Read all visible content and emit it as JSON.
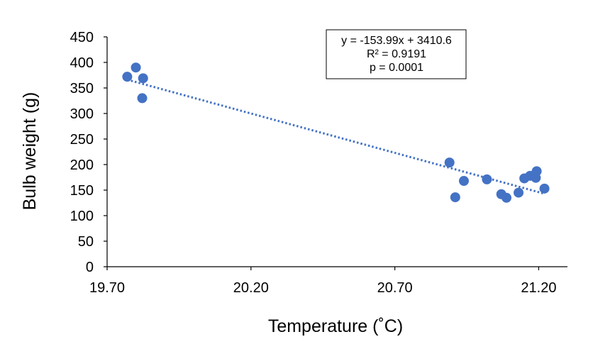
{
  "chart_data": {
    "type": "scatter",
    "title": "",
    "xlabel": "Temperature (˚C)",
    "ylabel": "Bulb weight (g)",
    "xlim": [
      19.7,
      21.3
    ],
    "ylim": [
      0,
      450
    ],
    "x_ticks": [
      "19.70",
      "20.20",
      "20.70",
      "21.20"
    ],
    "x_tick_values": [
      19.7,
      20.2,
      20.7,
      21.2
    ],
    "y_ticks": [
      "0",
      "50",
      "100",
      "150",
      "200",
      "250",
      "300",
      "350",
      "400",
      "450"
    ],
    "y_tick_values": [
      0,
      50,
      100,
      150,
      200,
      250,
      300,
      350,
      400,
      450
    ],
    "grid": false,
    "series": [
      {
        "name": "Bulb weight",
        "color": "#4472C4",
        "points": [
          {
            "x": 19.77,
            "y": 372
          },
          {
            "x": 19.8,
            "y": 390
          },
          {
            "x": 19.825,
            "y": 369
          },
          {
            "x": 19.822,
            "y": 330
          },
          {
            "x": 20.89,
            "y": 204
          },
          {
            "x": 20.91,
            "y": 136
          },
          {
            "x": 20.94,
            "y": 168
          },
          {
            "x": 21.02,
            "y": 171
          },
          {
            "x": 21.07,
            "y": 142
          },
          {
            "x": 21.088,
            "y": 135
          },
          {
            "x": 21.13,
            "y": 145
          },
          {
            "x": 21.15,
            "y": 173
          },
          {
            "x": 21.17,
            "y": 178
          },
          {
            "x": 21.19,
            "y": 174
          },
          {
            "x": 21.193,
            "y": 187
          },
          {
            "x": 21.22,
            "y": 153
          }
        ]
      }
    ],
    "trendline": {
      "type": "linear",
      "slope": -153.99,
      "intercept": 3410.6,
      "x_range": [
        19.77,
        21.22
      ],
      "style": "dotted",
      "color": "#4472C4"
    },
    "annotation": {
      "position": "top-right",
      "lines": [
        "y = -153.99x + 3410.6",
        "R² = 0.9191",
        "p  =  0.0001"
      ]
    }
  }
}
